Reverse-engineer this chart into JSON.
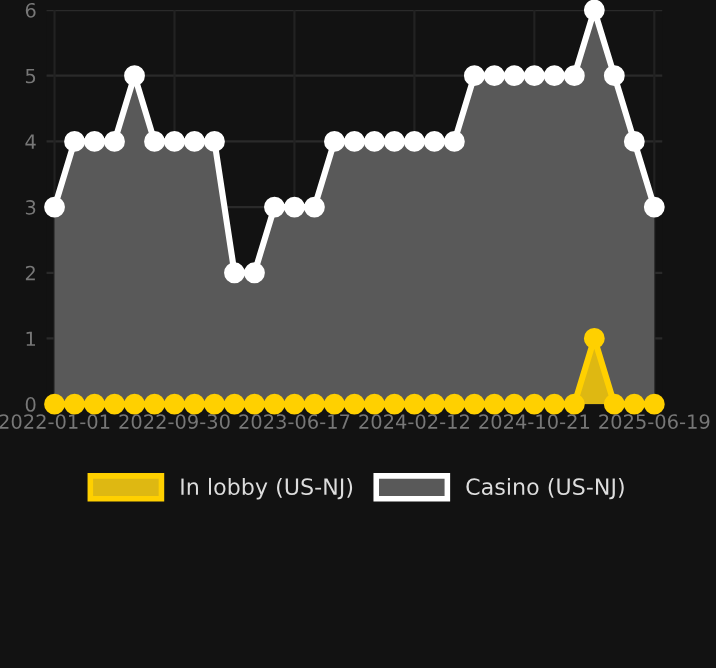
{
  "chart_data": {
    "type": "area",
    "categories": [
      "2022-01-01",
      null,
      null,
      null,
      null,
      null,
      "2022-09-30",
      null,
      null,
      null,
      null,
      null,
      "2023-06-17",
      null,
      null,
      null,
      null,
      null,
      "2024-02-12",
      null,
      null,
      null,
      null,
      null,
      "2024-10-21",
      null,
      null,
      null,
      null,
      null,
      "2025-06-19"
    ],
    "series": [
      {
        "name": "In lobby (US-NJ)",
        "color": "#ffd000",
        "values": [
          0,
          0,
          0,
          0,
          0,
          0,
          0,
          0,
          0,
          0,
          0,
          0,
          0,
          0,
          0,
          0,
          0,
          0,
          0,
          0,
          0,
          0,
          0,
          0,
          0,
          0,
          0,
          1,
          0,
          0,
          0
        ]
      },
      {
        "name": "Casino (US-NJ)",
        "color": "#ffffff",
        "values": [
          3,
          4,
          4,
          4,
          5,
          4,
          4,
          4,
          4,
          2,
          2,
          3,
          3,
          3,
          4,
          4,
          4,
          4,
          4,
          4,
          4,
          5,
          5,
          5,
          5,
          5,
          5,
          6,
          5,
          4,
          3
        ]
      }
    ],
    "ylim": [
      0,
      6
    ],
    "yticks": [
      0,
      1,
      2,
      3,
      4,
      5,
      6
    ],
    "grid": true,
    "legend": "bottom",
    "marker": "circle"
  }
}
